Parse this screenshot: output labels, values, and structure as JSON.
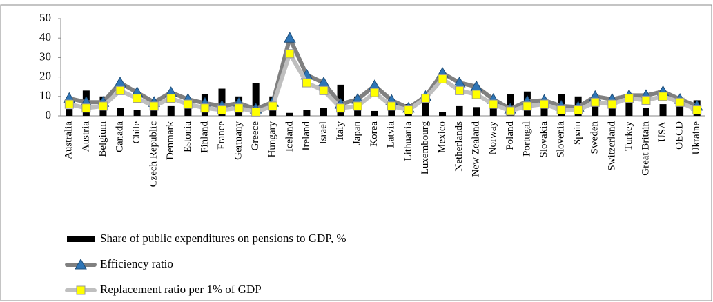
{
  "chart_data": {
    "type": "bar",
    "categories": [
      "Australia",
      "Austria",
      "Belgium",
      "Canada",
      "Chile",
      "Czech Republic",
      "Denmark",
      "Estonia",
      "Finland",
      "France",
      "Germany",
      "Greece",
      "Hungary",
      "Iceland",
      "Ireland",
      "Israel",
      "Italy",
      "Japan",
      "Korea",
      "Latvia",
      "Lithuania",
      "Luxembourg",
      "Mexico",
      "Netherlands",
      "New Zealand",
      "Norway",
      "Poland",
      "Portugal",
      "Slovakia",
      "Slovenia",
      "Spain",
      "Sweden",
      "Switzerland",
      "Turkey",
      "Great Britain",
      "USA",
      "OECD",
      "Ukraine"
    ],
    "series": [
      {
        "name": "Share of public expenditures on pensions to GDP, %",
        "type": "bar",
        "color": "#000000",
        "values": [
          3.5,
          13,
          10,
          4,
          3,
          8,
          5,
          6,
          11,
          14,
          10,
          17,
          10,
          1.5,
          3,
          4,
          16,
          10,
          2.5,
          6,
          6,
          6.5,
          2,
          5,
          4.5,
          5,
          11,
          12.5,
          7,
          11,
          10,
          7,
          6,
          7,
          4,
          6,
          8,
          8
        ]
      },
      {
        "name": "Efficiency ratio",
        "type": "line",
        "color": "#808080",
        "marker": "triangle",
        "marker_color": "#2e75b6",
        "values": [
          9,
          7,
          7,
          17,
          12,
          7,
          12,
          8.5,
          6.5,
          5,
          6.5,
          3.5,
          7,
          40,
          21,
          17,
          6,
          8.5,
          15.5,
          8,
          4,
          10,
          22,
          17,
          15,
          8.5,
          3.5,
          7.5,
          8,
          5,
          4.5,
          10,
          8.5,
          10.5,
          10.5,
          12.5,
          8.5,
          5
        ]
      },
      {
        "name": "Replacement ratio per 1% of GDP",
        "type": "line",
        "color": "#bfbfbf",
        "marker": "square",
        "marker_color": "#ffff00",
        "values": [
          6,
          4,
          5,
          13,
          9,
          5,
          9,
          6,
          4,
          3,
          4,
          2,
          5,
          32,
          17,
          13,
          4,
          5,
          12,
          5,
          3,
          9,
          19,
          13,
          11,
          6,
          2.5,
          5,
          6,
          3,
          3,
          7,
          6,
          9,
          8,
          10,
          7,
          3
        ]
      }
    ],
    "ylim": [
      0,
      50
    ],
    "yticks": [
      0,
      10,
      20,
      30,
      40,
      50
    ],
    "grid": false
  }
}
